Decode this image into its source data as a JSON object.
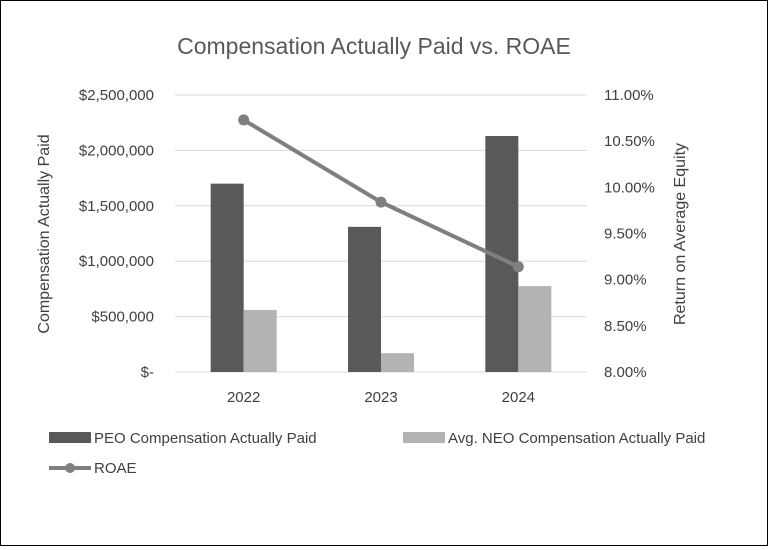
{
  "chart_data": {
    "type": "bar",
    "title": "Compensation Actually Paid vs. ROAE",
    "categories": [
      "2022",
      "2023",
      "2024"
    ],
    "series": [
      {
        "name": "PEO Compensation Actually Paid",
        "kind": "bar",
        "axis": "left",
        "color": "#595959",
        "values": [
          1700000,
          1310000,
          2130000
        ]
      },
      {
        "name": "Avg. NEO Compensation Actually Paid",
        "kind": "bar",
        "axis": "left",
        "color": "#b3b3b3",
        "values": [
          560000,
          170000,
          775000
        ]
      },
      {
        "name": "ROAE",
        "kind": "line",
        "axis": "right",
        "color": "#7f7f7f",
        "values": [
          10.73,
          9.84,
          9.14
        ]
      }
    ],
    "ylabel": "Compensation Actually Paid",
    "y2label": "Return on Average Equity",
    "ylim": [
      0,
      2500000
    ],
    "y2lim": [
      8.0,
      11.0
    ],
    "yticks": [
      {
        "value": 0,
        "label": "$-"
      },
      {
        "value": 500000,
        "label": "$500,000"
      },
      {
        "value": 1000000,
        "label": "$1,000,000"
      },
      {
        "value": 1500000,
        "label": "$1,500,000"
      },
      {
        "value": 2000000,
        "label": "$2,000,000"
      },
      {
        "value": 2500000,
        "label": "$2,500,000"
      }
    ],
    "y2ticks": [
      {
        "value": 8.0,
        "label": "8.00%"
      },
      {
        "value": 8.5,
        "label": "8.50%"
      },
      {
        "value": 9.0,
        "label": "9.00%"
      },
      {
        "value": 9.5,
        "label": "9.50%"
      },
      {
        "value": 10.0,
        "label": "10.00%"
      },
      {
        "value": 10.5,
        "label": "10.50%"
      },
      {
        "value": 11.0,
        "label": "11.00%"
      }
    ],
    "grid": true,
    "legend": "bottom"
  }
}
